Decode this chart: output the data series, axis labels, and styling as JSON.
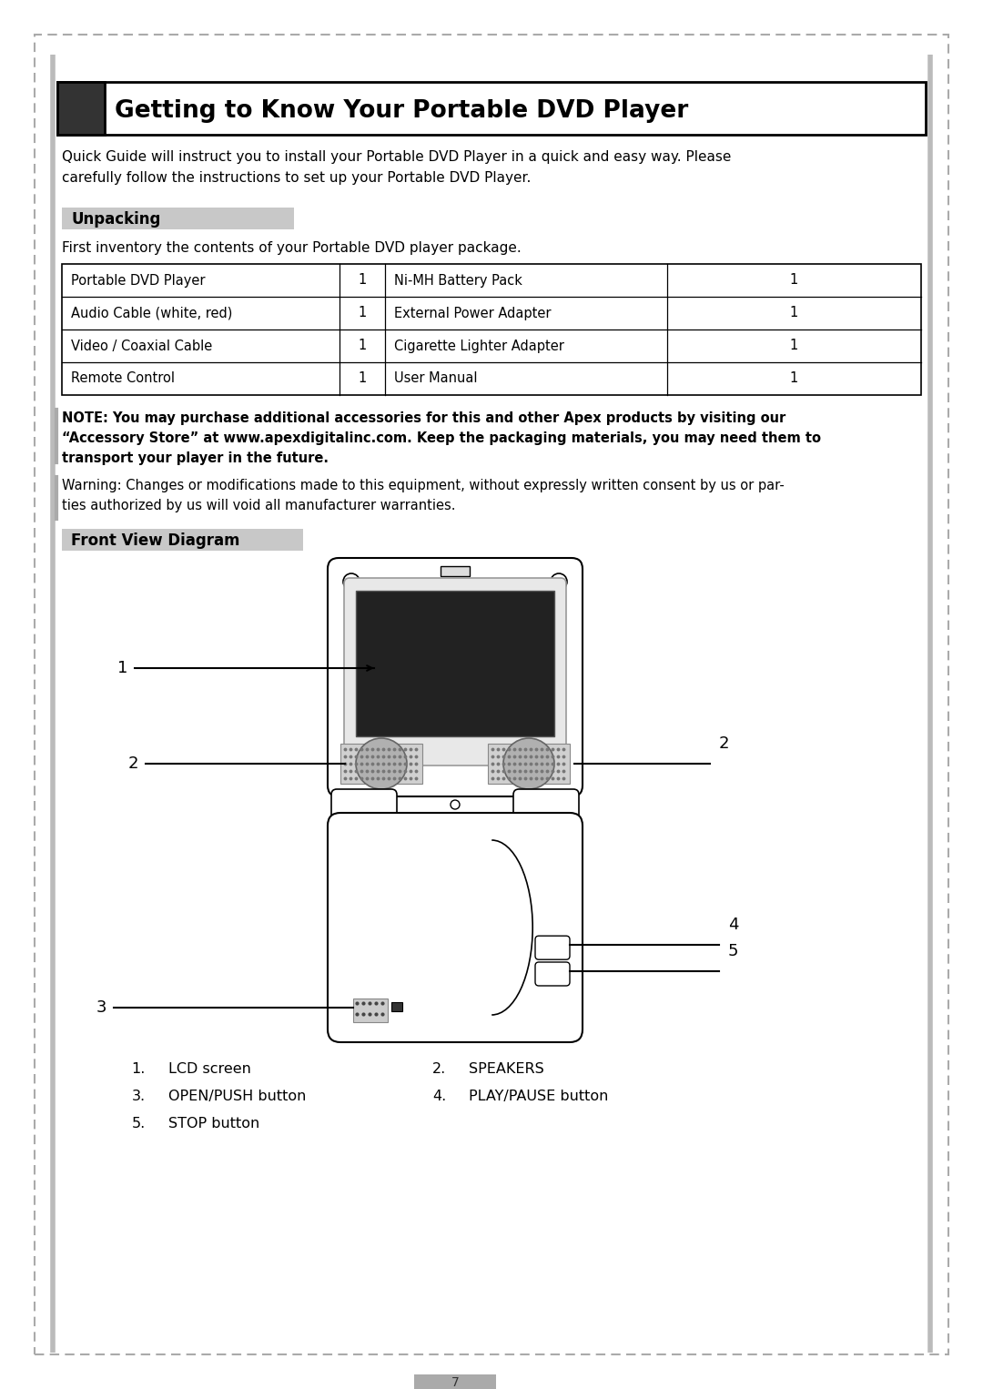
{
  "page_bg": "#ffffff",
  "border_dash_color": "#aaaaaa",
  "title_bg": "#333333",
  "title_text": "Getting to Know Your Portable DVD Player",
  "section_bg": "#c8c8c8",
  "section1_text": "Unpacking",
  "section2_text": "Front View Diagram",
  "intro_text": "Quick Guide will instruct you to install your Portable DVD Player in a quick and easy way. Please\ncarefully follow the instructions to set up your Portable DVD Player.",
  "unpack_intro": "First inventory the contents of your Portable DVD player package.",
  "table_items": [
    [
      "Portable DVD Player",
      "1",
      "Ni-MH Battery Pack",
      "1"
    ],
    [
      "Audio Cable (white, red)",
      "1",
      "External Power Adapter",
      "1"
    ],
    [
      "Video / Coaxial Cable",
      "1",
      "Cigarette Lighter Adapter",
      "1"
    ],
    [
      "Remote Control",
      "1",
      "User Manual",
      "1"
    ]
  ],
  "note_line1": "NOTE: You may purchase additional accessories for this and other Apex products by visiting our",
  "note_line2": "“Accessory Store” at www.apexdigitalinc.com. Keep the packaging materials, you may need them to",
  "note_line3": "transport your player in the future.",
  "warning_line1": "Warning: Changes or modifications made to this equipment, without expressly written consent by us or par-",
  "warning_line2": "ties authorized by us will void all manufacturer warranties.",
  "legend_col1": [
    [
      "1.",
      "LCD screen"
    ],
    [
      "3.",
      "OPEN/PUSH button"
    ],
    [
      "5.",
      "STOP button"
    ]
  ],
  "legend_col2": [
    [
      "2.",
      "SPEAKERS"
    ],
    [
      "4.",
      "PLAY/PAUSE button"
    ],
    [
      "",
      ""
    ]
  ],
  "page_number": "7",
  "screen_color": "#222222",
  "speaker_dot_color": "#777777",
  "device_line_color": "#000000"
}
